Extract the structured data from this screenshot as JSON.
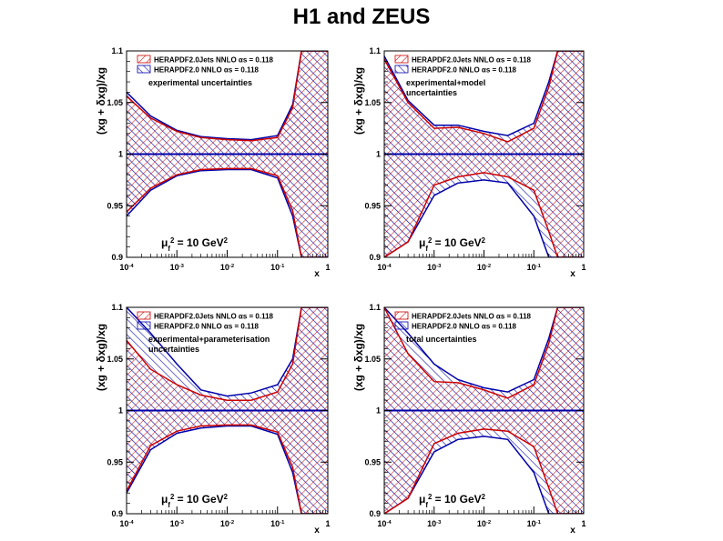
{
  "title": "H1 and ZEUS",
  "colors": {
    "jets": "#cc0000",
    "nojets": "#0000aa",
    "frame": "#000000",
    "centre_line": "#0000aa"
  },
  "chart_data": [
    {
      "type": "area",
      "panel": "top-left",
      "label": "experimental uncertainties",
      "scale": "μ_f² = 10 GeV²",
      "xlabel": "x",
      "ylabel": "(xg + δxg)/xg",
      "xscale": "log",
      "xlim": [
        0.0001,
        1
      ],
      "ylim": [
        0.9,
        1.1
      ],
      "xticks": [
        0.0001,
        0.001,
        0.01,
        0.1,
        1
      ],
      "xtick_labels": [
        "10-4",
        "10-3",
        "10-2",
        "10-1",
        "1"
      ],
      "yticks": [
        0.9,
        0.95,
        1,
        1.05,
        1.1
      ],
      "ytick_labels": [
        "0.9",
        "0.95",
        "1",
        "1.05",
        "1.1"
      ],
      "legend_position": "top-left",
      "x": [
        0.0001,
        0.0003,
        0.001,
        0.003,
        0.01,
        0.03,
        0.1,
        0.2,
        0.3,
        0.5,
        1
      ],
      "series": [
        {
          "name": "HERAPDF2.0Jets NNLO αs = 0.118",
          "upper": [
            1.056,
            1.035,
            1.022,
            1.016,
            1.014,
            1.013,
            1.016,
            1.045,
            1.1,
            1.1,
            1.1
          ],
          "lower": [
            0.944,
            0.967,
            0.98,
            0.985,
            0.986,
            0.986,
            0.979,
            0.945,
            0.9,
            0.9,
            0.9
          ]
        },
        {
          "name": "HERAPDF2.0 NNLO αs = 0.118",
          "upper": [
            1.06,
            1.037,
            1.023,
            1.017,
            1.015,
            1.014,
            1.018,
            1.048,
            1.1,
            1.1,
            1.1
          ],
          "lower": [
            0.94,
            0.965,
            0.979,
            0.984,
            0.985,
            0.985,
            0.977,
            0.94,
            0.9,
            0.9,
            0.9
          ]
        }
      ]
    },
    {
      "type": "area",
      "panel": "top-right",
      "label": "experimental+model uncertainties",
      "scale": "μ_f² = 10 GeV²",
      "xlabel": "x",
      "ylabel": "(xg + δxg)/xg",
      "xscale": "log",
      "xlim": [
        0.0001,
        1
      ],
      "ylim": [
        0.9,
        1.1
      ],
      "xticks": [
        0.0001,
        0.001,
        0.01,
        0.1,
        1
      ],
      "xtick_labels": [
        "10-4",
        "10-3",
        "10-2",
        "10-1",
        "1"
      ],
      "yticks": [
        0.9,
        0.95,
        1,
        1.05,
        1.1
      ],
      "ytick_labels": [
        "0.9",
        "0.95",
        "1",
        "1.05",
        "1.1"
      ],
      "legend_position": "top-left",
      "x": [
        0.0001,
        0.0003,
        0.001,
        0.003,
        0.01,
        0.03,
        0.1,
        0.2,
        0.3,
        0.5,
        1
      ],
      "series": [
        {
          "name": "HERAPDF2.0Jets NNLO αs = 0.118",
          "upper": [
            1.092,
            1.05,
            1.025,
            1.026,
            1.02,
            1.012,
            1.025,
            1.065,
            1.1,
            1.1,
            1.1
          ],
          "lower": [
            0.9,
            0.915,
            0.97,
            0.978,
            0.982,
            0.978,
            0.965,
            0.925,
            0.9,
            0.9,
            0.9
          ]
        },
        {
          "name": "HERAPDF2.0 NNLO αs = 0.118",
          "upper": [
            1.095,
            1.052,
            1.028,
            1.028,
            1.022,
            1.018,
            1.03,
            1.07,
            1.1,
            1.1,
            1.1
          ],
          "lower": [
            0.9,
            0.915,
            0.96,
            0.972,
            0.975,
            0.972,
            0.94,
            0.9,
            0.9,
            0.9,
            0.9
          ]
        }
      ]
    },
    {
      "type": "area",
      "panel": "bottom-left",
      "label": "experimental+parameterisation uncertainties",
      "scale": "μ_f² = 10 GeV²",
      "xlabel": "x",
      "ylabel": "(xg + δxg)/xg",
      "xscale": "log",
      "xlim": [
        0.0001,
        1
      ],
      "ylim": [
        0.9,
        1.1
      ],
      "xticks": [
        0.0001,
        0.001,
        0.01,
        0.1,
        1
      ],
      "xtick_labels": [
        "10-4",
        "10-3",
        "10-2",
        "10-1",
        "1"
      ],
      "yticks": [
        0.9,
        0.95,
        1,
        1.05,
        1.1
      ],
      "ytick_labels": [
        "0.9",
        "0.95",
        "1",
        "1.05",
        "1.1"
      ],
      "legend_position": "top-left",
      "x": [
        0.0001,
        0.0003,
        0.001,
        0.003,
        0.01,
        0.03,
        0.1,
        0.2,
        0.3,
        0.5,
        1
      ],
      "series": [
        {
          "name": "HERAPDF2.0Jets NNLO αs = 0.118",
          "upper": [
            1.068,
            1.04,
            1.025,
            1.015,
            1.01,
            1.01,
            1.018,
            1.045,
            1.1,
            1.1,
            1.1
          ],
          "lower": [
            0.922,
            0.966,
            0.98,
            0.985,
            0.986,
            0.986,
            0.979,
            0.945,
            0.9,
            0.9,
            0.9
          ]
        },
        {
          "name": "HERAPDF2.0 NNLO αs = 0.118",
          "upper": [
            1.1,
            1.075,
            1.045,
            1.02,
            1.014,
            1.017,
            1.025,
            1.05,
            1.1,
            1.1,
            1.1
          ],
          "lower": [
            0.92,
            0.962,
            0.978,
            0.983,
            0.985,
            0.985,
            0.977,
            0.94,
            0.9,
            0.9,
            0.9
          ]
        }
      ]
    },
    {
      "type": "area",
      "panel": "bottom-right",
      "label": "total uncertainties",
      "scale": "μ_f² = 10 GeV²",
      "xlabel": "x",
      "ylabel": "(xg + δxg)/xg",
      "xscale": "log",
      "xlim": [
        0.0001,
        1
      ],
      "ylim": [
        0.9,
        1.1
      ],
      "xticks": [
        0.0001,
        0.001,
        0.01,
        0.1,
        1
      ],
      "xtick_labels": [
        "10-4",
        "10-3",
        "10-2",
        "10-1",
        "1"
      ],
      "yticks": [
        0.9,
        0.95,
        1,
        1.05,
        1.1
      ],
      "ytick_labels": [
        "0.9",
        "0.95",
        "1",
        "1.05",
        "1.1"
      ],
      "legend_position": "top-left",
      "x": [
        0.0001,
        0.0003,
        0.001,
        0.003,
        0.01,
        0.03,
        0.1,
        0.2,
        0.3,
        0.5,
        1
      ],
      "series": [
        {
          "name": "HERAPDF2.0Jets NNLO αs = 0.118",
          "upper": [
            1.1,
            1.055,
            1.028,
            1.027,
            1.02,
            1.012,
            1.025,
            1.065,
            1.1,
            1.1,
            1.1
          ],
          "lower": [
            0.9,
            0.915,
            0.968,
            0.978,
            0.982,
            0.98,
            0.965,
            0.925,
            0.9,
            0.9,
            0.9
          ]
        },
        {
          "name": "HERAPDF2.0 NNLO αs = 0.118",
          "upper": [
            1.1,
            1.075,
            1.045,
            1.03,
            1.022,
            1.018,
            1.03,
            1.07,
            1.1,
            1.1,
            1.1
          ],
          "lower": [
            0.9,
            0.915,
            0.96,
            0.972,
            0.975,
            0.972,
            0.94,
            0.9,
            0.9,
            0.9,
            0.9
          ]
        }
      ]
    }
  ]
}
